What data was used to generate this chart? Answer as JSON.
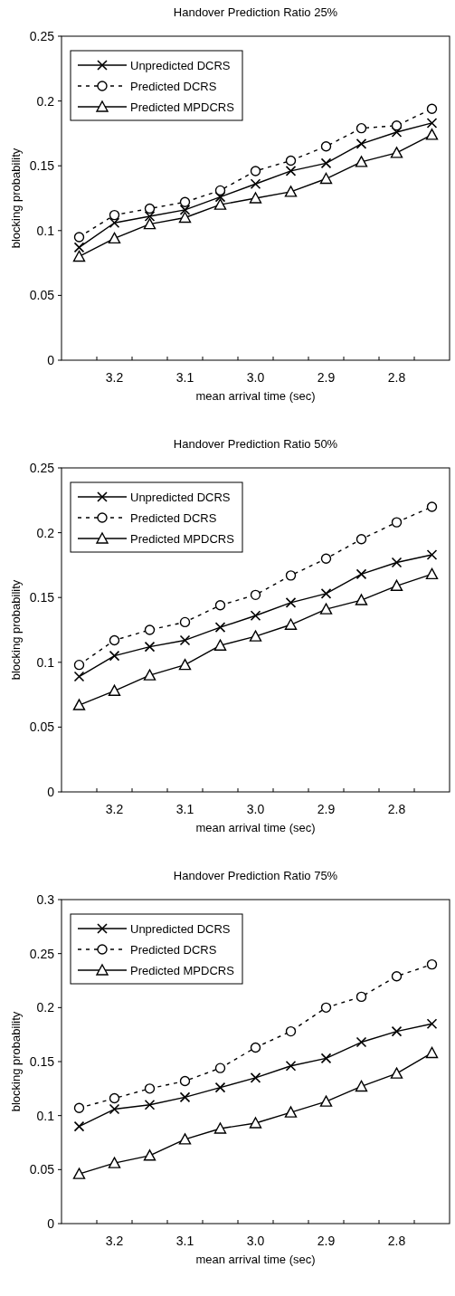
{
  "chart_data": [
    {
      "type": "line",
      "title": "Handover Prediction Ratio 25%",
      "xlabel": "mean arrival time (sec)",
      "ylabel": "blocking probability",
      "categories": [
        null,
        "3.2",
        null,
        "3.1",
        null,
        "3.0",
        null,
        "2.9",
        null,
        "2.8",
        null
      ],
      "ylim": [
        0,
        0.25
      ],
      "yticks": [
        0,
        0.05,
        0.1,
        0.15,
        0.2,
        0.25
      ],
      "grid": false,
      "legend": "top left",
      "series": [
        {
          "name": "Unpredicted DCRS",
          "color": "#000000",
          "marker": "cross",
          "line_style": "solid",
          "values": [
            0.087,
            0.106,
            0.111,
            0.116,
            0.126,
            0.136,
            0.146,
            0.152,
            0.167,
            0.176,
            0.183
          ]
        },
        {
          "name": "Predicted DCRS",
          "color": "#000000",
          "marker": "circle",
          "line_style": "dashed",
          "values": [
            0.095,
            0.112,
            0.117,
            0.122,
            0.131,
            0.146,
            0.154,
            0.165,
            0.179,
            0.181,
            0.194
          ]
        },
        {
          "name": "Predicted MPDCRS",
          "color": "#000000",
          "marker": "triangle",
          "line_style": "solid",
          "values": [
            0.08,
            0.094,
            0.105,
            0.11,
            0.12,
            0.125,
            0.13,
            0.14,
            0.153,
            0.16,
            0.174
          ]
        }
      ]
    },
    {
      "type": "line",
      "title": "Handover Prediction Ratio 50%",
      "xlabel": "mean arrival time (sec)",
      "ylabel": "blocking probability",
      "categories": [
        null,
        "3.2",
        null,
        "3.1",
        null,
        "3.0",
        null,
        "2.9",
        null,
        "2.8",
        null
      ],
      "ylim": [
        0,
        0.25
      ],
      "yticks": [
        0,
        0.05,
        0.1,
        0.15,
        0.2,
        0.25
      ],
      "grid": false,
      "legend": "top left",
      "series": [
        {
          "name": "Unpredicted DCRS",
          "color": "#000000",
          "marker": "cross",
          "line_style": "solid",
          "values": [
            0.089,
            0.105,
            0.112,
            0.117,
            0.127,
            0.136,
            0.146,
            0.153,
            0.168,
            0.177,
            0.183
          ]
        },
        {
          "name": "Predicted DCRS",
          "color": "#000000",
          "marker": "circle",
          "line_style": "dashed",
          "values": [
            0.098,
            0.117,
            0.125,
            0.131,
            0.144,
            0.152,
            0.167,
            0.18,
            0.195,
            0.208,
            0.22
          ]
        },
        {
          "name": "Predicted MPDCRS",
          "color": "#000000",
          "marker": "triangle",
          "line_style": "solid",
          "values": [
            0.067,
            0.078,
            0.09,
            0.098,
            0.113,
            0.12,
            0.129,
            0.141,
            0.148,
            0.159,
            0.168
          ]
        }
      ]
    },
    {
      "type": "line",
      "title": "Handover Prediction Ratio 75%",
      "xlabel": "mean arrival time (sec)",
      "ylabel": "blocking probability",
      "categories": [
        null,
        "3.2",
        null,
        "3.1",
        null,
        "3.0",
        null,
        "2.9",
        null,
        "2.8",
        null
      ],
      "ylim": [
        0,
        0.3
      ],
      "yticks": [
        0,
        0.05,
        0.1,
        0.15,
        0.2,
        0.25,
        0.3
      ],
      "grid": false,
      "legend": "top left",
      "series": [
        {
          "name": "Unpredicted DCRS",
          "color": "#000000",
          "marker": "cross",
          "line_style": "solid",
          "values": [
            0.09,
            0.106,
            0.11,
            0.117,
            0.126,
            0.135,
            0.146,
            0.153,
            0.168,
            0.178,
            0.185
          ]
        },
        {
          "name": "Predicted DCRS",
          "color": "#000000",
          "marker": "circle",
          "line_style": "dashed",
          "values": [
            0.107,
            0.116,
            0.125,
            0.132,
            0.144,
            0.163,
            0.178,
            0.2,
            0.21,
            0.229,
            0.24
          ]
        },
        {
          "name": "Predicted MPDCRS",
          "color": "#000000",
          "marker": "triangle",
          "line_style": "solid",
          "values": [
            0.046,
            0.056,
            0.063,
            0.078,
            0.088,
            0.093,
            0.103,
            0.113,
            0.127,
            0.139,
            0.158
          ]
        }
      ]
    }
  ]
}
